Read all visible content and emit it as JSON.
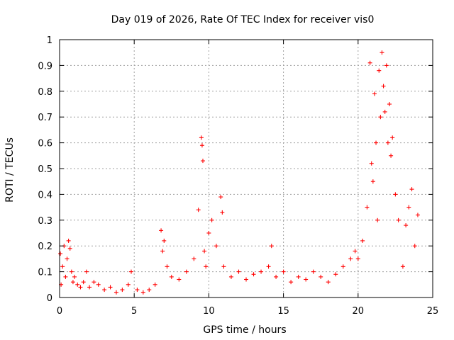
{
  "chart_data": {
    "type": "scatter",
    "title": "Day 019 of 2026, Rate Of TEC Index for receiver vis0",
    "xlabel": "GPS time / hours",
    "ylabel": "ROTI / TECUs",
    "xlim": [
      0,
      25
    ],
    "ylim": [
      0,
      1
    ],
    "xticks": [
      0,
      5,
      10,
      15,
      20,
      25
    ],
    "yticks": [
      0,
      0.1,
      0.2,
      0.3,
      0.4,
      0.5,
      0.6,
      0.7,
      0.8,
      0.9,
      1
    ],
    "xtick_labels": [
      "0",
      "5",
      "10",
      "15",
      "20",
      "25"
    ],
    "ytick_labels": [
      "0",
      "0.1",
      "0.2",
      "0.3",
      "0.4",
      "0.5",
      "0.6",
      "0.7",
      "0.8",
      "0.9",
      "1"
    ],
    "grid": true,
    "marker": "plus",
    "color": "#ff0000",
    "series": [
      {
        "name": "ROTI",
        "x": [
          0.05,
          0.1,
          0.2,
          0.3,
          0.4,
          0.5,
          0.6,
          0.7,
          0.8,
          0.9,
          1.0,
          1.2,
          1.4,
          1.6,
          1.8,
          2.0,
          2.3,
          2.6,
          3.0,
          3.4,
          3.8,
          4.2,
          4.6,
          4.8,
          5.2,
          5.6,
          6.0,
          6.4,
          6.8,
          6.9,
          7.0,
          7.2,
          7.5,
          8.0,
          8.5,
          9.0,
          9.3,
          9.5,
          9.55,
          9.6,
          9.7,
          9.8,
          10.0,
          10.2,
          10.5,
          10.8,
          10.9,
          11.0,
          11.5,
          12.0,
          12.5,
          13.0,
          13.5,
          14.0,
          14.2,
          14.5,
          15.0,
          15.5,
          16.0,
          16.5,
          17.0,
          17.5,
          18.0,
          18.5,
          19.0,
          19.5,
          19.8,
          20.0,
          20.3,
          20.6,
          20.8,
          20.9,
          21.0,
          21.1,
          21.2,
          21.3,
          21.4,
          21.5,
          21.6,
          21.7,
          21.8,
          21.9,
          22.0,
          22.1,
          22.2,
          22.3,
          22.5,
          22.7,
          23.0,
          23.2,
          23.4,
          23.6,
          23.8,
          24.0
        ],
        "y": [
          0.17,
          0.05,
          0.12,
          0.2,
          0.08,
          0.15,
          0.22,
          0.19,
          0.1,
          0.06,
          0.08,
          0.05,
          0.04,
          0.06,
          0.1,
          0.04,
          0.06,
          0.05,
          0.03,
          0.04,
          0.02,
          0.03,
          0.05,
          0.1,
          0.03,
          0.02,
          0.03,
          0.05,
          0.26,
          0.18,
          0.22,
          0.12,
          0.08,
          0.07,
          0.1,
          0.15,
          0.34,
          0.62,
          0.59,
          0.53,
          0.18,
          0.12,
          0.25,
          0.3,
          0.2,
          0.39,
          0.33,
          0.12,
          0.08,
          0.1,
          0.07,
          0.09,
          0.1,
          0.12,
          0.2,
          0.08,
          0.1,
          0.06,
          0.08,
          0.07,
          0.1,
          0.08,
          0.06,
          0.09,
          0.12,
          0.15,
          0.18,
          0.15,
          0.22,
          0.35,
          0.91,
          0.52,
          0.45,
          0.79,
          0.6,
          0.3,
          0.88,
          0.7,
          0.95,
          0.82,
          0.72,
          0.9,
          0.6,
          0.75,
          0.55,
          0.62,
          0.4,
          0.3,
          0.12,
          0.28,
          0.35,
          0.42,
          0.2,
          0.32
        ]
      }
    ]
  }
}
